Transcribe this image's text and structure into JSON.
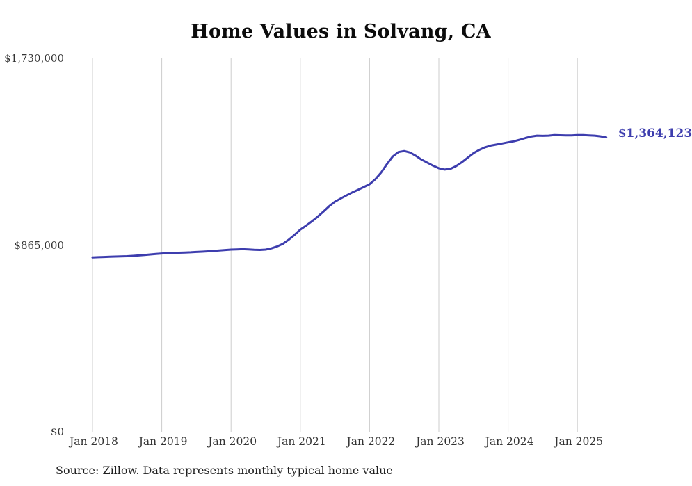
{
  "chart_data": {
    "type": "line",
    "title": "Home Values in Solvang, CA",
    "series_name": "Typical home value",
    "start_month": "Jan 2018",
    "frequency": "monthly",
    "values": [
      808000,
      809000,
      810000,
      811000,
      812000,
      812500,
      813500,
      815000,
      817000,
      819000,
      821500,
      824000,
      826000,
      827500,
      828500,
      829500,
      830500,
      831500,
      833000,
      834500,
      836000,
      838000,
      840000,
      842000,
      844000,
      845000,
      846000,
      845000,
      843500,
      842500,
      844000,
      850000,
      859000,
      871000,
      890000,
      912000,
      937000,
      955000,
      975000,
      996000,
      1020000,
      1045000,
      1066000,
      1081000,
      1095000,
      1109000,
      1121000,
      1134000,
      1147000,
      1170000,
      1201000,
      1240000,
      1275000,
      1296000,
      1301000,
      1294000,
      1279000,
      1261000,
      1247000,
      1233000,
      1221000,
      1215000,
      1218000,
      1231000,
      1249000,
      1270000,
      1291000,
      1306000,
      1318000,
      1326000,
      1331000,
      1336000,
      1341000,
      1346000,
      1353000,
      1361000,
      1368000,
      1372000,
      1371000,
      1372000,
      1375000,
      1374000,
      1373000,
      1373000,
      1375000,
      1374500,
      1373500,
      1372000,
      1369000,
      1364123
    ],
    "x_tick_labels": [
      "Jan 2018",
      "Jan 2019",
      "Jan 2020",
      "Jan 2021",
      "Jan 2022",
      "Jan 2023",
      "Jan 2024",
      "Jan 2025"
    ],
    "y_ticks": [
      {
        "value": 0,
        "label": "$0"
      },
      {
        "value": 865000,
        "label": "$865,000"
      },
      {
        "value": 1730000,
        "label": "$1,730,000"
      }
    ],
    "ylim": [
      0,
      1730000
    ],
    "end_value": 1364123,
    "end_value_label": "$1,364,123",
    "line_color": "#3d3dae",
    "grid": "vertical-only",
    "legend": "none",
    "source": "Source: Zillow. Data represents monthly typical home value"
  }
}
